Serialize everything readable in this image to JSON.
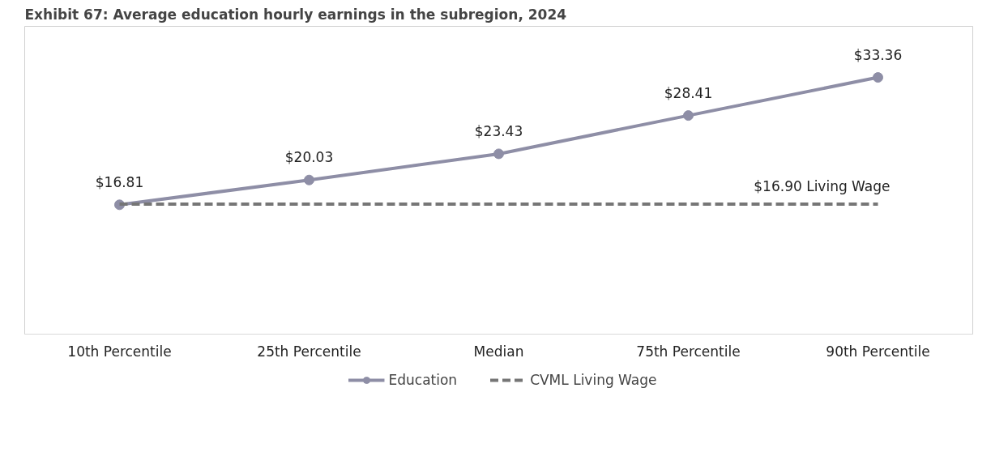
{
  "chart_data": {
    "type": "line",
    "title": "Exhibit 67: Average education hourly earnings in the subregion, 2024",
    "categories": [
      "10th Percentile",
      "25th Percentile",
      "Median",
      "75th Percentile",
      "90th Percentile"
    ],
    "series": [
      {
        "name": "Education",
        "color": "#8e8ea6",
        "values": [
          16.81,
          20.03,
          23.43,
          28.41,
          33.36
        ],
        "marker": "circle",
        "line_style": "solid",
        "value_labels": [
          "$16.81",
          "$20.03",
          "$23.43",
          "$28.41",
          "$33.36"
        ]
      },
      {
        "name": "CVML Living Wage",
        "color": "#767676",
        "values": [
          16.9,
          16.9,
          16.9,
          16.9,
          16.9
        ],
        "marker": "none",
        "line_style": "dashed",
        "value_labels": [
          null,
          null,
          null,
          null,
          "$16.90 Living Wage"
        ]
      }
    ],
    "ylim": [
      0,
      40
    ],
    "tick_labels": "x",
    "grid": false,
    "legend": "bottom"
  }
}
